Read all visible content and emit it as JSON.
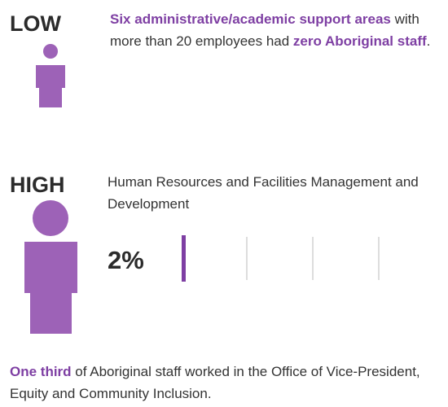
{
  "low": {
    "label": "LOW",
    "text": [
      {
        "text": "Six administrative/academic support areas",
        "bold": true
      },
      {
        "text": " with more than 20 employees had ",
        "bold": false
      },
      {
        "text": "zero Aboriginal staff",
        "bold": true
      },
      {
        "text": ".",
        "bold": false
      }
    ]
  },
  "high": {
    "label": "HIGH",
    "text": "Human Resources and Facilities Management and Development",
    "percent": "2%"
  },
  "footer": {
    "text": [
      {
        "text": "One third",
        "bold": true
      },
      {
        "text": " of Aboriginal staff worked in the Office of Vice-President, Equity and Community Inclusion.",
        "bold": false
      }
    ]
  }
}
